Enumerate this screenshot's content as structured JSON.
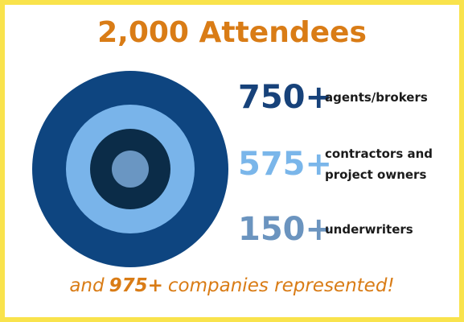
{
  "title": "2,000 Attendees",
  "stats": [
    {
      "number": "750+",
      "label": "agents/brokers"
    },
    {
      "number": "575+",
      "label": "contractors and project owners"
    },
    {
      "number": "150+",
      "label": "underwriters"
    }
  ],
  "footer": {
    "prefix": "and",
    "highlight": "975+",
    "suffix": "companies represented!"
  }
}
